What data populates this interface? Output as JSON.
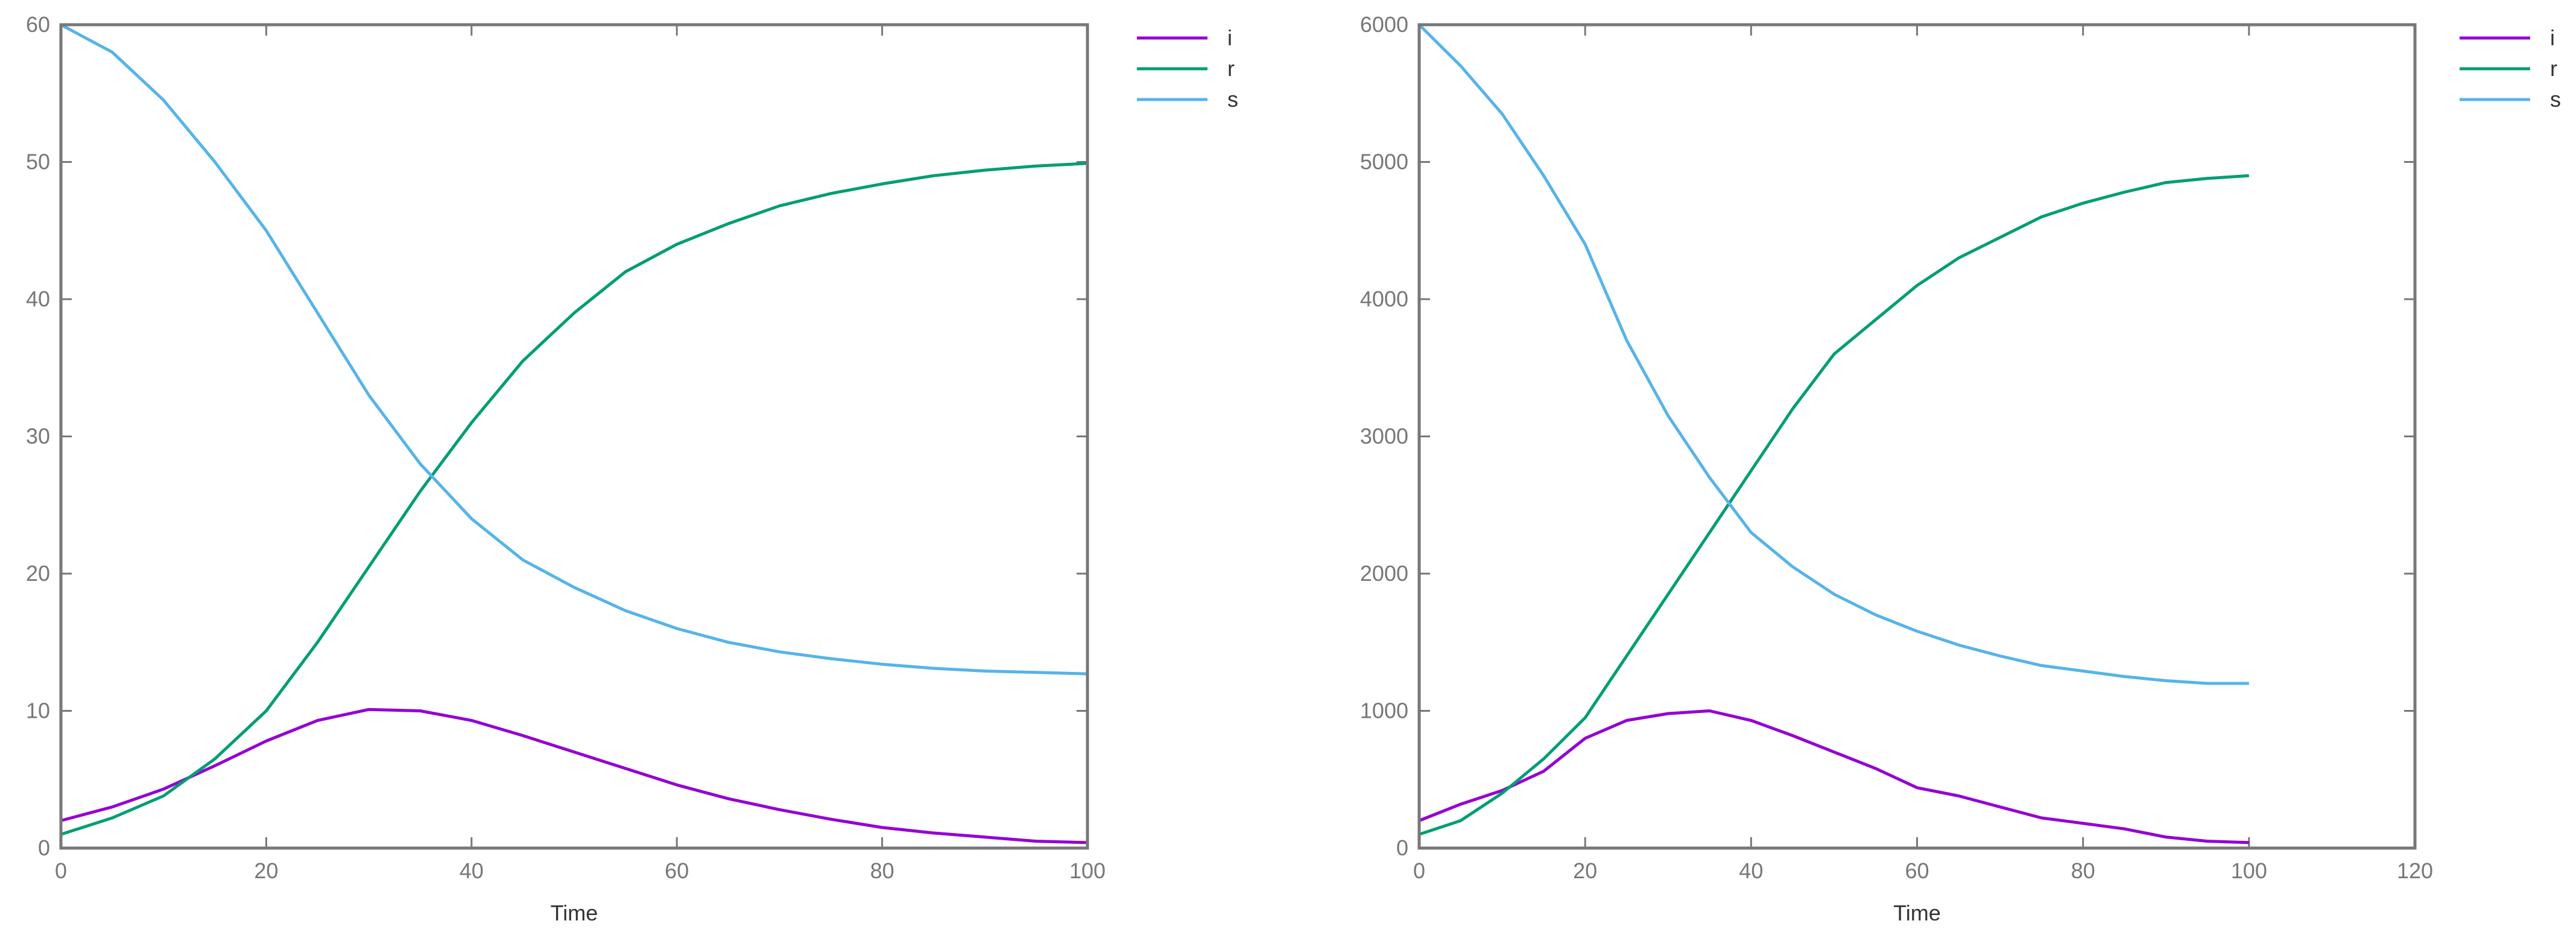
{
  "chart_data": [
    {
      "type": "line",
      "x_label": "Time",
      "x": [
        0,
        5,
        10,
        15,
        20,
        25,
        30,
        35,
        40,
        45,
        50,
        55,
        60,
        65,
        70,
        75,
        80,
        85,
        90,
        95,
        100
      ],
      "xlim": [
        0,
        100
      ],
      "xticks": [
        0,
        20,
        40,
        60,
        80,
        100
      ],
      "ylim": [
        0,
        60
      ],
      "yticks": [
        0,
        10,
        20,
        30,
        40,
        50,
        60
      ],
      "legend": "top-right-outside",
      "series": [
        {
          "name": "i",
          "color": "#9400d3",
          "values": [
            2,
            3,
            4.3,
            6,
            7.8,
            9.3,
            10.1,
            10,
            9.3,
            8.2,
            7,
            5.8,
            4.6,
            3.6,
            2.8,
            2.1,
            1.5,
            1.1,
            0.8,
            0.5,
            0.4
          ]
        },
        {
          "name": "r",
          "color": "#009e73",
          "values": [
            1,
            2.2,
            3.8,
            6.5,
            10,
            15,
            20.5,
            26,
            31,
            35.5,
            39,
            42,
            44,
            45.5,
            46.8,
            47.7,
            48.4,
            49,
            49.4,
            49.7,
            49.9
          ]
        },
        {
          "name": "s",
          "color": "#56b4e9",
          "values": [
            60,
            58,
            54.5,
            50,
            45,
            39,
            33,
            28,
            24,
            21,
            19,
            17.3,
            16,
            15,
            14.3,
            13.8,
            13.4,
            13.1,
            12.9,
            12.8,
            12.7
          ]
        }
      ]
    },
    {
      "type": "line",
      "x_label": "Time",
      "x": [
        0,
        5,
        10,
        15,
        20,
        25,
        30,
        35,
        40,
        45,
        50,
        55,
        60,
        65,
        70,
        75,
        80,
        85,
        90,
        95,
        100
      ],
      "xlim": [
        0,
        120
      ],
      "xticks": [
        0,
        20,
        40,
        60,
        80,
        100,
        120
      ],
      "ylim": [
        0,
        6000
      ],
      "yticks": [
        0,
        1000,
        2000,
        3000,
        4000,
        5000,
        6000
      ],
      "legend": "top-right-outside",
      "series": [
        {
          "name": "i",
          "color": "#9400d3",
          "values": [
            200,
            320,
            420,
            560,
            800,
            930,
            980,
            1000,
            930,
            820,
            700,
            580,
            440,
            380,
            300,
            220,
            180,
            140,
            80,
            50,
            40
          ]
        },
        {
          "name": "r",
          "color": "#009e73",
          "values": [
            100,
            200,
            400,
            650,
            950,
            1400,
            1850,
            2300,
            2750,
            3200,
            3600,
            3850,
            4100,
            4300,
            4450,
            4600,
            4700,
            4780,
            4850,
            4880,
            4900
          ]
        },
        {
          "name": "s",
          "color": "#56b4e9",
          "values": [
            6000,
            5700,
            5350,
            4900,
            4400,
            3700,
            3150,
            2700,
            2300,
            2050,
            1850,
            1700,
            1580,
            1480,
            1400,
            1330,
            1290,
            1250,
            1220,
            1200,
            1200
          ]
        }
      ]
    }
  ]
}
